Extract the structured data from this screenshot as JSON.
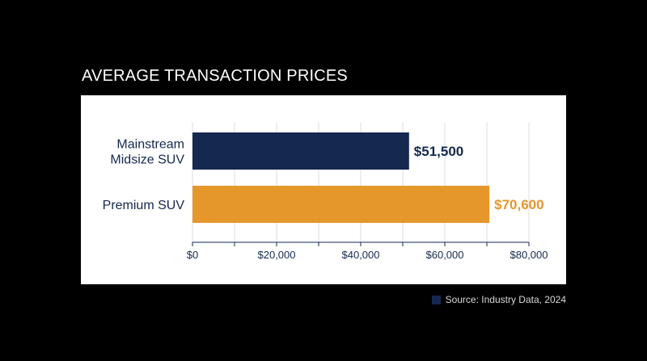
{
  "chart_data": {
    "type": "bar",
    "orientation": "horizontal",
    "title": "AVERAGE TRANSACTION PRICES",
    "categories": [
      {
        "lines": [
          "Mainstream",
          "Midsize SUV"
        ]
      },
      {
        "lines": [
          "Premium SUV"
        ]
      }
    ],
    "values": [
      51500,
      70600
    ],
    "value_labels": [
      "$51,500",
      "$70,600"
    ],
    "colors": [
      "#15284f",
      "#e5972c"
    ],
    "label_colors": [
      "#15284f",
      "#e5972c"
    ],
    "xlim": [
      0,
      80000
    ],
    "x_ticks": [
      0,
      20000,
      40000,
      60000,
      80000
    ],
    "x_tick_labels": [
      "$0",
      "$20,000",
      "$40,000",
      "$60,000",
      "$80,000"
    ],
    "x_minor_ticks": [
      10000,
      30000,
      50000,
      70000
    ],
    "grid": true,
    "xlabel": "",
    "ylabel": ""
  },
  "source": {
    "text": "Source: Industry Data, 2024",
    "swatch_color": "#15284f"
  },
  "colors": {
    "background": "#000000",
    "panel": "#ffffff",
    "axis_text": "#15284f",
    "grid": "#dddddd"
  }
}
